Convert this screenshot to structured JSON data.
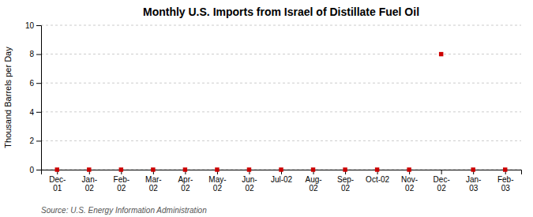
{
  "chart_data": {
    "type": "scatter",
    "title": "Monthly U.S. Imports from Israel of Distillate Fuel Oil",
    "y_label": "Thousand Barrels per Day",
    "source": "Source: U.S. Energy Information Administration",
    "categories": [
      "Dec-\n01",
      "Jan-\n02",
      "Feb-\n02",
      "Mar-\n02",
      "Apr-\n02",
      "May-\n02",
      "Jun-\n02",
      "Jul-02",
      "Aug-\n02",
      "Sep-\n02",
      "Oct-02",
      "Nov-\n02",
      "Dec-\n02",
      "Jan-\n03",
      "Feb-\n03"
    ],
    "values": [
      0,
      0,
      0,
      0,
      0,
      0,
      0,
      0,
      0,
      0,
      0,
      0,
      8,
      0,
      0
    ],
    "color": "#cc0000",
    "marker": "square",
    "line_style": "none",
    "ylim": [
      0,
      10
    ],
    "yticks": [
      0,
      2,
      4,
      6,
      8,
      10
    ],
    "grid": true
  }
}
